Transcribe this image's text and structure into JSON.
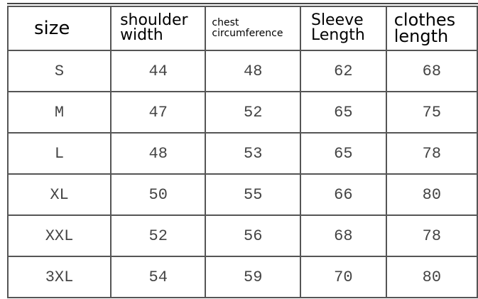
{
  "headers": [
    "size",
    "shoulder\nwidth",
    "chest\ncircumference",
    "Sleeve\nLength",
    "clothes\nlength"
  ],
  "header_lines": [
    [
      "size"
    ],
    [
      "shoulder",
      "width"
    ],
    [
      "chest",
      "circumference"
    ],
    [
      "Sleeve",
      "Length"
    ],
    [
      "clothes",
      "length"
    ]
  ],
  "rows": [
    [
      "S",
      "44",
      "48",
      "62",
      "68"
    ],
    [
      "M",
      "47",
      "52",
      "65",
      "75"
    ],
    [
      "L",
      "48",
      "53",
      "65",
      "78"
    ],
    [
      "XL",
      "50",
      "55",
      "66",
      "80"
    ],
    [
      "XXL",
      "52",
      "56",
      "68",
      "78"
    ],
    [
      "3XL",
      "54",
      "59",
      "70",
      "80"
    ]
  ]
}
